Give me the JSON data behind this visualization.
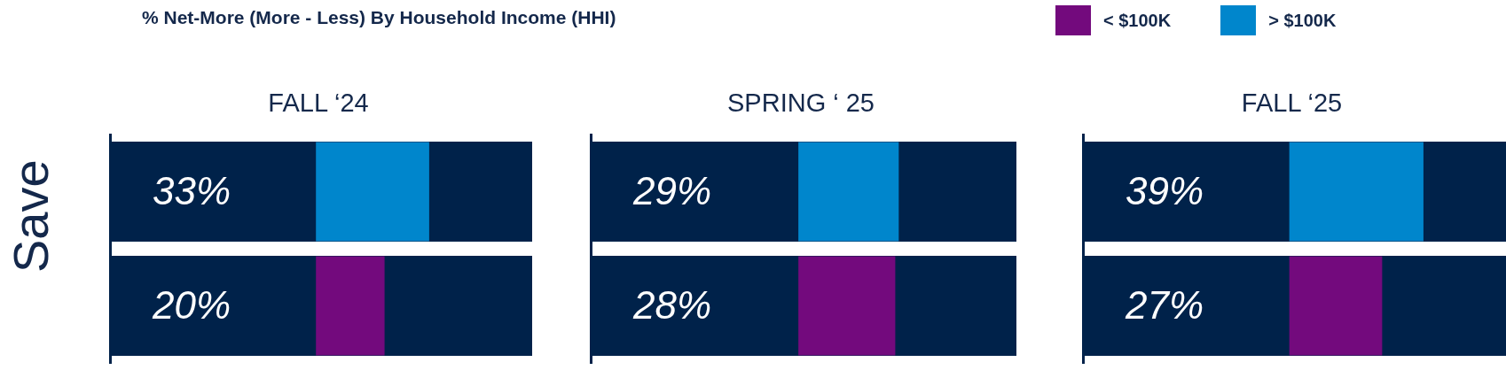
{
  "chart_data": [
    {
      "type": "bar",
      "orientation": "horizontal",
      "stacked": true,
      "title": "% Net-More (More - Less) By Household Income (HHI)",
      "subtitle": "FALL ‘24",
      "ylabel": "Save",
      "legend": "top right",
      "categories": [
        null,
        null
      ],
      "xlim": [
        -60,
        63
      ],
      "series": [
        {
          "name": "< $100K",
          "color": "#730a7d",
          "values": [
            null,
            20
          ],
          "value_labels": [
            null,
            "20%"
          ]
        },
        {
          "name": "> $100K",
          "color": "#0086cc",
          "values": [
            33,
            null
          ],
          "value_labels": [
            "33%",
            null
          ]
        }
      ]
    },
    {
      "type": "bar",
      "orientation": "horizontal",
      "stacked": true,
      "subtitle": "SPRING ‘ 25",
      "categories": [
        null,
        null
      ],
      "xlim": [
        -60,
        63
      ],
      "legend": false,
      "series": [
        {
          "color": "#730a7d",
          "values": [
            null,
            28
          ],
          "value_labels": [
            null,
            "28%"
          ]
        },
        {
          "color": "#0086cc",
          "values": [
            29,
            null
          ],
          "value_labels": [
            "29%",
            null
          ]
        }
      ]
    },
    {
      "type": "bar",
      "orientation": "horizontal",
      "stacked": true,
      "subtitle": "FALL ‘25",
      "categories": [
        null,
        null
      ],
      "xlim": [
        -60,
        63
      ],
      "legend": false,
      "series": [
        {
          "color": "#730a7d",
          "values": [
            null,
            27
          ],
          "value_labels": [
            null,
            "27%"
          ]
        },
        {
          "color": "#0086cc",
          "values": [
            39,
            null
          ],
          "value_labels": [
            "39%",
            null
          ]
        }
      ]
    }
  ]
}
